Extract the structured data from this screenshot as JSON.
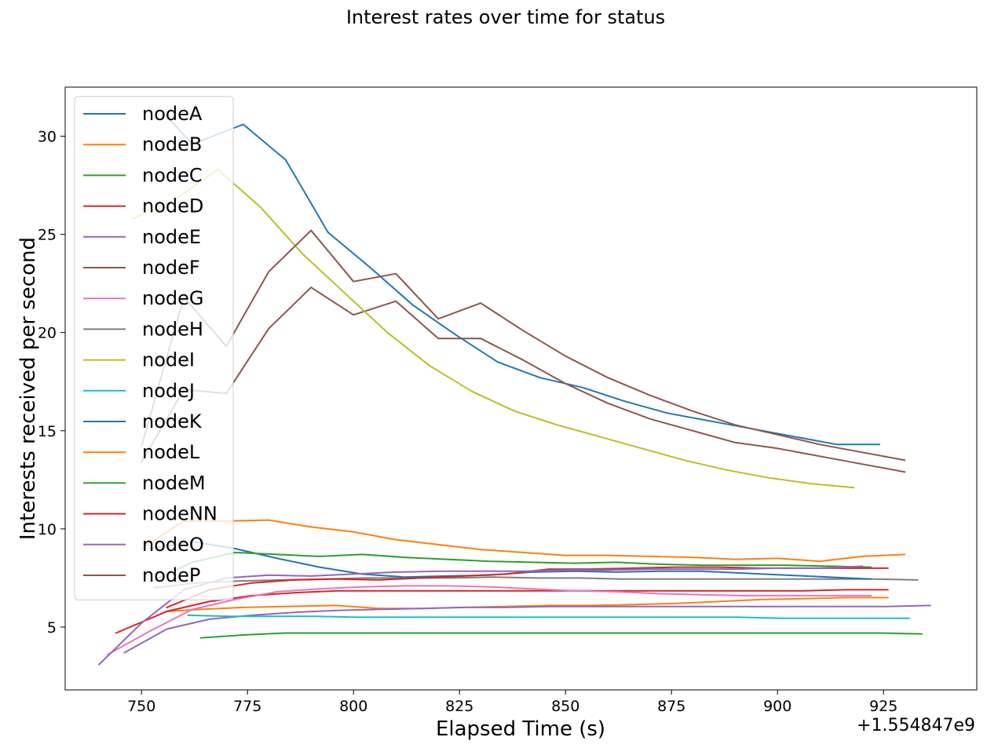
{
  "chart_data": {
    "type": "line",
    "title": "Interest rates over time for status",
    "xlabel": "Elapsed Time (s)",
    "ylabel": "Interests received per second",
    "x_offset_label": "+1.554847e9",
    "xlim": [
      732,
      947
    ],
    "ylim": [
      1.8,
      32.5
    ],
    "x_ticks": [
      750,
      775,
      800,
      825,
      850,
      875,
      900,
      925
    ],
    "y_ticks": [
      5,
      10,
      15,
      20,
      25,
      30
    ],
    "grid": false,
    "legend_position": "upper-left",
    "series": [
      {
        "name": "nodeA",
        "color": "#1f77b4",
        "x": [
          756,
          762,
          774,
          784,
          794,
          804,
          814,
          824,
          834,
          844,
          854,
          864,
          874,
          884,
          894,
          904,
          914,
          924
        ],
        "y": [
          31.0,
          29.6,
          30.6,
          28.8,
          25.1,
          23.3,
          21.4,
          19.9,
          18.5,
          17.7,
          17.2,
          16.5,
          15.9,
          15.5,
          15.1,
          14.7,
          14.3,
          14.3
        ]
      },
      {
        "name": "nodeB",
        "color": "#ff7f0e",
        "x": [
          756,
          764,
          774,
          784,
          796,
          806,
          816,
          826,
          836,
          846,
          856,
          866,
          876,
          886,
          896,
          906,
          916,
          926
        ],
        "y": [
          5.8,
          5.9,
          6.0,
          6.05,
          6.1,
          5.95,
          5.95,
          6.0,
          6.05,
          6.1,
          6.1,
          6.15,
          6.2,
          6.3,
          6.4,
          6.45,
          6.5,
          6.5
        ]
      },
      {
        "name": "nodeC",
        "color": "#2ca02c",
        "x": [
          764,
          774,
          784,
          794,
          804,
          814,
          824,
          834,
          844,
          854,
          864,
          874,
          884,
          894,
          904,
          914,
          924,
          934
        ],
        "y": [
          4.45,
          4.6,
          4.7,
          4.7,
          4.7,
          4.7,
          4.7,
          4.7,
          4.7,
          4.7,
          4.7,
          4.7,
          4.7,
          4.7,
          4.7,
          4.7,
          4.7,
          4.65
        ]
      },
      {
        "name": "nodeD",
        "color": "#d62728",
        "x": [
          744,
          756,
          766,
          776,
          786,
          796,
          806,
          816,
          826,
          836,
          846,
          856,
          866,
          876,
          886,
          896,
          906,
          916,
          926
        ],
        "y": [
          4.7,
          5.8,
          6.3,
          6.6,
          6.75,
          6.85,
          6.85,
          6.85,
          6.85,
          6.85,
          6.85,
          6.85,
          6.85,
          6.85,
          6.85,
          6.85,
          6.85,
          6.9,
          6.9
        ]
      },
      {
        "name": "nodeE",
        "color": "#9467bd",
        "x": [
          746,
          756,
          766,
          776,
          786,
          796,
          806,
          816,
          826,
          836,
          846,
          856,
          866,
          876,
          886,
          896,
          906,
          916,
          926,
          936
        ],
        "y": [
          3.7,
          4.9,
          5.4,
          5.6,
          5.75,
          5.85,
          5.9,
          5.95,
          6.0,
          6.0,
          6.05,
          6.05,
          6.05,
          6.05,
          6.05,
          6.05,
          6.05,
          6.05,
          6.05,
          6.1
        ]
      },
      {
        "name": "nodeF",
        "color": "#8c564b",
        "x": [
          750,
          760,
          770,
          780,
          790,
          800,
          810,
          820,
          830,
          840,
          850,
          860,
          870,
          880,
          890,
          900,
          910,
          920,
          930
        ],
        "y": [
          13.4,
          17.1,
          16.9,
          20.2,
          22.3,
          20.9,
          21.6,
          19.7,
          19.7,
          18.6,
          17.4,
          16.4,
          15.6,
          15.0,
          14.4,
          14.1,
          13.7,
          13.3,
          12.9
        ]
      },
      {
        "name": "nodeG",
        "color": "#e377c2",
        "x": [
          742,
          752,
          762,
          772,
          782,
          792,
          802,
          812,
          822,
          832,
          842,
          852,
          862,
          872,
          882,
          892,
          902,
          912,
          922
        ],
        "y": [
          3.6,
          4.8,
          5.9,
          6.4,
          6.8,
          6.95,
          7.05,
          7.1,
          7.1,
          7.05,
          6.95,
          6.85,
          6.8,
          6.7,
          6.65,
          6.6,
          6.6,
          6.6,
          6.6
        ]
      },
      {
        "name": "nodeH",
        "color": "#7f7f7f",
        "x": [
          753,
          763,
          773,
          783,
          793,
          803,
          813,
          823,
          833,
          843,
          853,
          863,
          873,
          883,
          893,
          903,
          913,
          923,
          933
        ],
        "y": [
          7.0,
          7.25,
          7.35,
          7.4,
          7.45,
          7.5,
          7.5,
          7.5,
          7.55,
          7.5,
          7.5,
          7.45,
          7.45,
          7.45,
          7.45,
          7.45,
          7.45,
          7.45,
          7.4
        ]
      },
      {
        "name": "nodeI",
        "color": "#bcbd22",
        "x": [
          748,
          758,
          768,
          778,
          788,
          798,
          808,
          818,
          828,
          838,
          848,
          858,
          868,
          878,
          888,
          898,
          908,
          918
        ],
        "y": [
          25.8,
          26.8,
          28.3,
          26.4,
          24.0,
          22.0,
          20.0,
          18.3,
          17.0,
          16.0,
          15.3,
          14.7,
          14.1,
          13.5,
          13.0,
          12.6,
          12.3,
          12.1
        ]
      },
      {
        "name": "nodeJ",
        "color": "#17becf",
        "x": [
          761,
          771,
          781,
          791,
          801,
          811,
          821,
          831,
          841,
          851,
          861,
          871,
          881,
          891,
          901,
          911,
          921,
          931
        ],
        "y": [
          5.6,
          5.55,
          5.55,
          5.55,
          5.5,
          5.5,
          5.5,
          5.5,
          5.5,
          5.5,
          5.5,
          5.5,
          5.5,
          5.5,
          5.45,
          5.45,
          5.45,
          5.45
        ]
      },
      {
        "name": "nodeK",
        "color": "#1f77b4",
        "x": [
          752,
          762,
          772,
          782,
          792,
          802,
          812,
          822,
          832,
          842,
          852,
          862,
          872,
          882,
          892,
          902,
          912,
          922
        ],
        "y": [
          9.0,
          9.35,
          9.0,
          8.5,
          8.05,
          7.7,
          7.55,
          7.6,
          7.65,
          7.8,
          7.85,
          7.8,
          7.85,
          7.85,
          7.75,
          7.65,
          7.55,
          7.45
        ]
      },
      {
        "name": "nodeL",
        "color": "#ff7f0e",
        "x": [
          750,
          760,
          770,
          780,
          790,
          800,
          810,
          820,
          830,
          840,
          850,
          860,
          870,
          880,
          890,
          900,
          910,
          920,
          930
        ],
        "y": [
          9.0,
          10.4,
          10.4,
          10.45,
          10.1,
          9.85,
          9.45,
          9.2,
          8.95,
          8.8,
          8.65,
          8.65,
          8.6,
          8.55,
          8.45,
          8.5,
          8.35,
          8.6,
          8.7
        ]
      },
      {
        "name": "nodeM",
        "color": "#2ca02c",
        "x": [
          752,
          762,
          772,
          782,
          792,
          802,
          812,
          822,
          832,
          842,
          852,
          862,
          872,
          882,
          892,
          902,
          912,
          922
        ],
        "y": [
          7.3,
          8.3,
          8.8,
          8.7,
          8.6,
          8.7,
          8.55,
          8.45,
          8.35,
          8.3,
          8.25,
          8.3,
          8.2,
          8.15,
          8.15,
          8.15,
          8.1,
          8.05
        ]
      },
      {
        "name": "nodeNN",
        "color": "#d62728",
        "x": [
          756,
          766,
          776,
          786,
          796,
          806,
          816,
          826,
          836,
          846,
          856,
          866,
          876,
          886,
          896,
          906,
          916,
          926
        ],
        "y": [
          6.0,
          6.9,
          7.25,
          7.4,
          7.45,
          7.4,
          7.5,
          7.6,
          7.7,
          7.95,
          7.95,
          8.0,
          8.05,
          8.05,
          8.0,
          8.0,
          8.0,
          8.0
        ]
      },
      {
        "name": "nodeO",
        "color": "#9467bd",
        "x": [
          740,
          750,
          760,
          770,
          780,
          790,
          800,
          810,
          820,
          830,
          840,
          850,
          860,
          870,
          880,
          890,
          900,
          910,
          920
        ],
        "y": [
          3.1,
          5.2,
          6.9,
          7.5,
          7.65,
          7.6,
          7.7,
          7.8,
          7.85,
          7.85,
          7.85,
          7.9,
          7.9,
          7.95,
          7.95,
          7.95,
          8.0,
          8.0,
          8.1
        ]
      },
      {
        "name": "nodeP",
        "color": "#8c564b",
        "x": [
          750,
          760,
          770,
          780,
          790,
          800,
          810,
          820,
          830,
          840,
          850,
          860,
          870,
          880,
          890,
          900,
          910,
          920,
          930
        ],
        "y": [
          14.2,
          21.8,
          19.3,
          23.1,
          25.2,
          22.6,
          23.0,
          20.7,
          21.5,
          20.1,
          18.8,
          17.7,
          16.8,
          16.0,
          15.3,
          14.8,
          14.3,
          13.9,
          13.5
        ]
      }
    ]
  }
}
